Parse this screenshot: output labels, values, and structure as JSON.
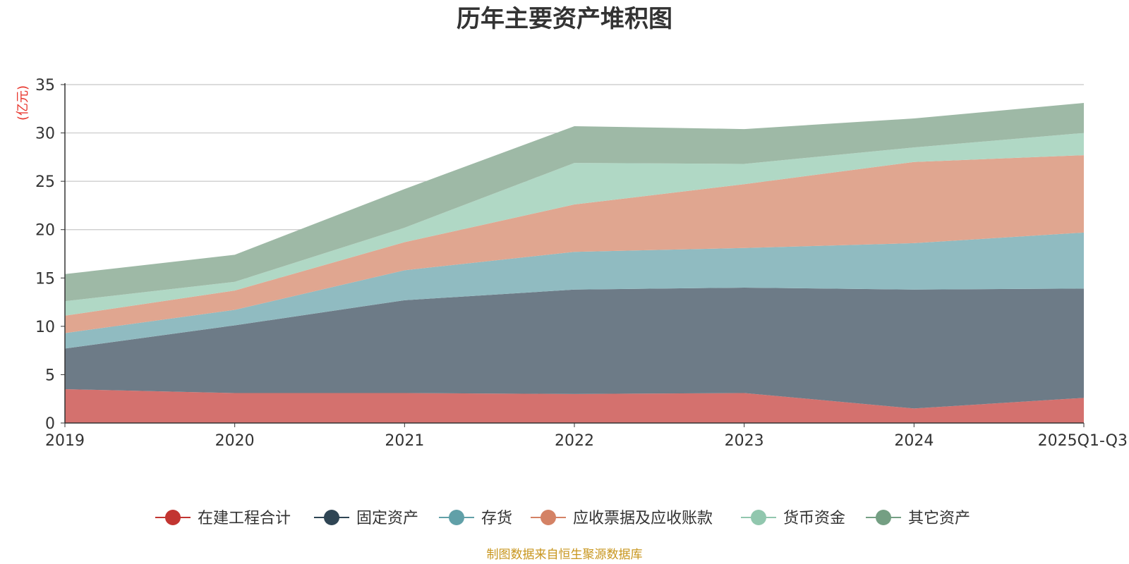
{
  "chart_data": {
    "type": "area",
    "stacked": true,
    "title": "历年主要资产堆积图",
    "ylabel": "(亿元)",
    "xlabel": "",
    "ylim": [
      0,
      35
    ],
    "yticks": [
      0,
      5,
      10,
      15,
      20,
      25,
      30,
      35
    ],
    "grid": true,
    "legend_position": "bottom",
    "categories": [
      "2019",
      "2020",
      "2021",
      "2022",
      "2023",
      "2024",
      "2025Q1-Q3"
    ],
    "series": [
      {
        "name": "在建工程合计",
        "color": "#c23531",
        "fill": "#d4716e",
        "values": [
          3.5,
          3.1,
          3.1,
          3.0,
          3.1,
          1.5,
          2.6
        ]
      },
      {
        "name": "固定资产",
        "color": "#2f4554",
        "fill": "#6d7b87",
        "values": [
          4.2,
          7.0,
          9.6,
          10.8,
          10.9,
          12.3,
          11.3
        ]
      },
      {
        "name": "存货",
        "color": "#61a0a8",
        "fill": "#90bbc1",
        "values": [
          1.6,
          1.6,
          3.1,
          3.9,
          4.1,
          4.8,
          5.8
        ]
      },
      {
        "name": "应收票据及应收账款",
        "color": "#d48265",
        "fill": "#e0a690",
        "values": [
          1.8,
          2.0,
          2.9,
          4.9,
          6.6,
          8.4,
          8.0
        ]
      },
      {
        "name": "货币资金",
        "color": "#91c7ae",
        "fill": "#b0d8c5",
        "values": [
          1.5,
          0.9,
          1.5,
          4.3,
          2.1,
          1.5,
          2.3
        ]
      },
      {
        "name": "其它资产",
        "color": "#749f83",
        "fill": "#9eb9a6",
        "values": [
          2.8,
          2.8,
          4.0,
          3.8,
          3.6,
          3.0,
          3.1
        ]
      }
    ],
    "source_note": "制图数据来自恒生聚源数据库"
  }
}
